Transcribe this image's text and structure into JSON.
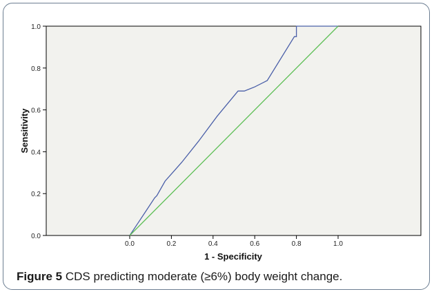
{
  "chart_data": {
    "type": "line",
    "title": "",
    "xlabel": "1 - Specificity",
    "ylabel": "Sensitivity",
    "xlim": [
      0.0,
      1.0
    ],
    "ylim": [
      0.0,
      1.0
    ],
    "x_ticks": [
      "0.0",
      "0.2",
      "0.4",
      "0.6",
      "0.8",
      "1.0"
    ],
    "y_ticks": [
      "0.0",
      "0.2",
      "0.4",
      "0.6",
      "0.8",
      "1.0"
    ],
    "grid": false,
    "background": "#f2f2ee",
    "series": [
      {
        "color": "#4a5fa8",
        "points": [
          [
            0.0,
            0.0
          ],
          [
            0.04,
            0.06
          ],
          [
            0.08,
            0.12
          ],
          [
            0.12,
            0.18
          ],
          [
            0.13,
            0.19
          ],
          [
            0.17,
            0.26
          ],
          [
            0.25,
            0.35
          ],
          [
            0.33,
            0.45
          ],
          [
            0.42,
            0.57
          ],
          [
            0.52,
            0.69
          ],
          [
            0.55,
            0.69
          ],
          [
            0.6,
            0.71
          ],
          [
            0.66,
            0.74
          ],
          [
            0.79,
            0.95
          ],
          [
            0.8,
            0.95
          ],
          [
            0.8,
            1.0
          ],
          [
            1.0,
            1.0
          ]
        ]
      },
      {
        "color": "#5dbf55",
        "points": [
          [
            0.0,
            0.0
          ],
          [
            1.0,
            1.0
          ]
        ]
      }
    ]
  },
  "caption": {
    "label": "Figure 5",
    "text": "CDS predicting moderate (≥6%) body weight change."
  }
}
